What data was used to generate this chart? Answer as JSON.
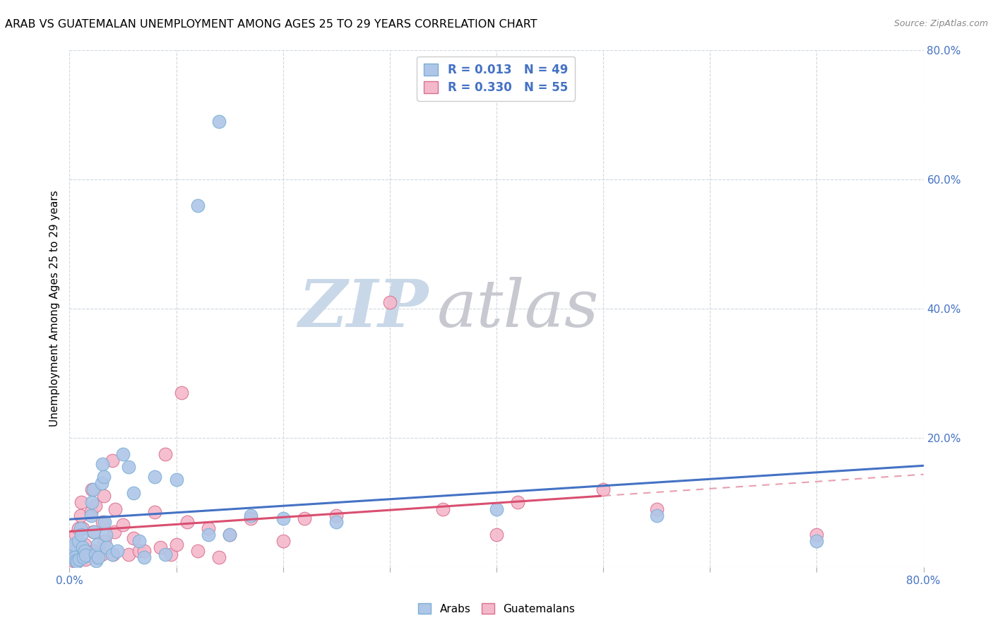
{
  "title": "ARAB VS GUATEMALAN UNEMPLOYMENT AMONG AGES 25 TO 29 YEARS CORRELATION CHART",
  "source_text": "Source: ZipAtlas.com",
  "ylabel": "Unemployment Among Ages 25 to 29 years",
  "xlim": [
    0.0,
    0.8
  ],
  "ylim": [
    0.0,
    0.8
  ],
  "arab_color": "#aec6e8",
  "arab_edge_color": "#7bafd4",
  "guatemalan_color": "#f4b8cb",
  "guatemalan_edge_color": "#d97090",
  "arab_R": 0.013,
  "arab_N": 49,
  "guatemalan_R": 0.33,
  "guatemalan_N": 55,
  "trend_arab_color": "#4472c4",
  "trend_guatemalan_solid_color": "#d94f70",
  "trend_guatemalan_dash_color": "#e8a0b0",
  "watermark_zip_color": "#c8d8e8",
  "watermark_atlas_color": "#c8c8d0",
  "background_color": "#ffffff",
  "grid_color": "#d0d8e0",
  "legend_text_color": "#4472c4",
  "arab_x": [
    0.001,
    0.002,
    0.003,
    0.004,
    0.005,
    0.006,
    0.007,
    0.008,
    0.009,
    0.01,
    0.011,
    0.012,
    0.013,
    0.014,
    0.015,
    0.02,
    0.021,
    0.022,
    0.023,
    0.024,
    0.025,
    0.026,
    0.027,
    0.03,
    0.031,
    0.032,
    0.033,
    0.034,
    0.035,
    0.04,
    0.045,
    0.05,
    0.055,
    0.06,
    0.065,
    0.07,
    0.08,
    0.09,
    0.1,
    0.12,
    0.13,
    0.14,
    0.15,
    0.17,
    0.2,
    0.25,
    0.4,
    0.55,
    0.7
  ],
  "arab_y": [
    0.02,
    0.025,
    0.03,
    0.035,
    0.015,
    0.01,
    0.008,
    0.04,
    0.012,
    0.06,
    0.05,
    0.03,
    0.015,
    0.025,
    0.018,
    0.08,
    0.1,
    0.12,
    0.055,
    0.02,
    0.01,
    0.035,
    0.015,
    0.13,
    0.16,
    0.14,
    0.07,
    0.05,
    0.03,
    0.02,
    0.025,
    0.175,
    0.155,
    0.115,
    0.04,
    0.015,
    0.14,
    0.02,
    0.135,
    0.56,
    0.05,
    0.69,
    0.05,
    0.08,
    0.075,
    0.07,
    0.09,
    0.08,
    0.04
  ],
  "guatemalan_x": [
    0.001,
    0.002,
    0.003,
    0.004,
    0.005,
    0.006,
    0.007,
    0.008,
    0.01,
    0.011,
    0.012,
    0.013,
    0.014,
    0.015,
    0.02,
    0.021,
    0.022,
    0.023,
    0.024,
    0.025,
    0.03,
    0.031,
    0.032,
    0.033,
    0.04,
    0.041,
    0.042,
    0.043,
    0.05,
    0.055,
    0.06,
    0.065,
    0.07,
    0.08,
    0.085,
    0.09,
    0.095,
    0.1,
    0.105,
    0.11,
    0.12,
    0.13,
    0.14,
    0.15,
    0.17,
    0.2,
    0.22,
    0.25,
    0.3,
    0.35,
    0.4,
    0.42,
    0.5,
    0.55,
    0.7
  ],
  "guatemalan_y": [
    0.015,
    0.03,
    0.025,
    0.01,
    0.035,
    0.05,
    0.008,
    0.06,
    0.08,
    0.1,
    0.06,
    0.02,
    0.035,
    0.012,
    0.085,
    0.12,
    0.055,
    0.025,
    0.095,
    0.015,
    0.02,
    0.07,
    0.11,
    0.04,
    0.165,
    0.02,
    0.055,
    0.09,
    0.065,
    0.02,
    0.045,
    0.025,
    0.025,
    0.085,
    0.03,
    0.175,
    0.02,
    0.035,
    0.27,
    0.07,
    0.025,
    0.06,
    0.015,
    0.05,
    0.075,
    0.04,
    0.075,
    0.08,
    0.41,
    0.09,
    0.05,
    0.1,
    0.12,
    0.09,
    0.05
  ]
}
